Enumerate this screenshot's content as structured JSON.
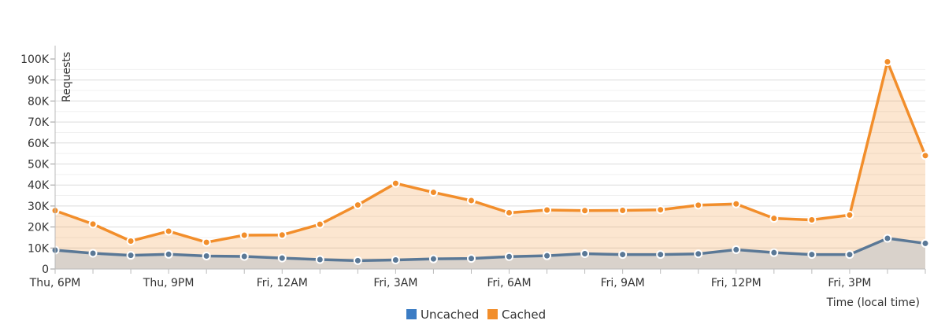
{
  "chart_data": {
    "type": "area",
    "ylabel": "Requests",
    "xlabel": "Time (local time)",
    "ylim": [
      0,
      100000
    ],
    "y_ticks": [
      {
        "value": 0,
        "label": "0"
      },
      {
        "value": 10000,
        "label": "10K"
      },
      {
        "value": 20000,
        "label": "20K"
      },
      {
        "value": 30000,
        "label": "30K"
      },
      {
        "value": 40000,
        "label": "40K"
      },
      {
        "value": 50000,
        "label": "50K"
      },
      {
        "value": 60000,
        "label": "60K"
      },
      {
        "value": 70000,
        "label": "70K"
      },
      {
        "value": 80000,
        "label": "80K"
      },
      {
        "value": 90000,
        "label": "90K"
      },
      {
        "value": 100000,
        "label": "100K"
      }
    ],
    "x_tick_labels": [
      {
        "index": 0,
        "label": "Thu, 6PM"
      },
      {
        "index": 3,
        "label": "Thu, 9PM"
      },
      {
        "index": 6,
        "label": "Fri, 12AM"
      },
      {
        "index": 9,
        "label": "Fri, 3AM"
      },
      {
        "index": 12,
        "label": "Fri, 6AM"
      },
      {
        "index": 15,
        "label": "Fri, 9AM"
      },
      {
        "index": 18,
        "label": "Fri, 12PM"
      },
      {
        "index": 21,
        "label": "Fri, 3PM"
      }
    ],
    "stacked": true,
    "grid": true,
    "legend_position": "bottom-center",
    "series": [
      {
        "name": "Uncached",
        "color": "#3b7cc4",
        "line_color": "#5a7896",
        "values": [
          9000,
          7500,
          6500,
          7000,
          6200,
          6000,
          5200,
          4500,
          4000,
          4300,
          4800,
          5000,
          5900,
          6300,
          7300,
          6900,
          6900,
          7200,
          9200,
          7800,
          6900,
          6900,
          14600,
          12200
        ]
      },
      {
        "name": "Cached",
        "color": "#f28e2b",
        "line_color": "#f28e2b",
        "values": [
          18800,
          13900,
          6800,
          11000,
          6500,
          10100,
          11000,
          16800,
          26500,
          36500,
          31700,
          27600,
          20900,
          21800,
          20500,
          21000,
          21300,
          23200,
          21800,
          16300,
          16500,
          18800,
          84100,
          41800
        ]
      }
    ]
  },
  "legend": {
    "items": [
      {
        "label": "Uncached",
        "color": "#3b7cc4"
      },
      {
        "label": "Cached",
        "color": "#f28e2b"
      }
    ]
  }
}
